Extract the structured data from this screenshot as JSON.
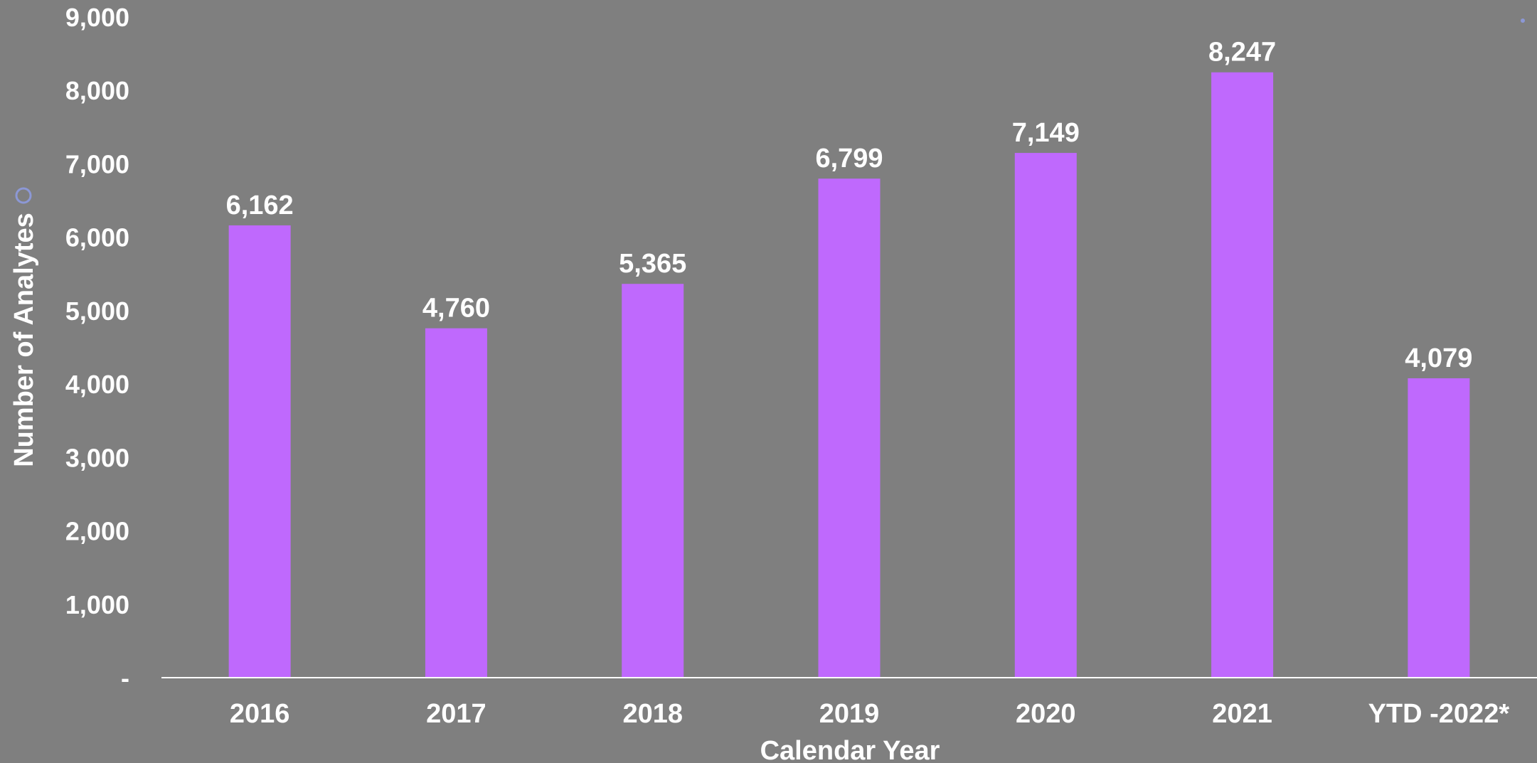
{
  "chart_data": {
    "type": "bar",
    "categories": [
      "2016",
      "2017",
      "2018",
      "2019",
      "2020",
      "2021",
      "YTD -2022*"
    ],
    "values": [
      6162,
      4760,
      5365,
      6799,
      7149,
      8247,
      4079
    ],
    "value_labels": [
      "6,162",
      "4,760",
      "5,365",
      "6,799",
      "7,149",
      "8,247",
      "4,079"
    ],
    "title": "",
    "xlabel": "Calendar Year",
    "ylabel": "Number of Analytes",
    "ylim": [
      0,
      9000
    ],
    "yticks": [
      0,
      1000,
      2000,
      3000,
      4000,
      5000,
      6000,
      7000,
      8000,
      9000
    ],
    "ytick_labels": [
      "-",
      "1,000",
      "2,000",
      "3,000",
      "4,000",
      "5,000",
      "6,000",
      "7,000",
      "8,000",
      "9,000"
    ],
    "grid": false,
    "legend": "none",
    "colors": {
      "background": "#7f7f7f",
      "bar": "#bf69fd",
      "axis_line": "#ffffff",
      "text": "#ffffff",
      "marker": "#8c98d6"
    }
  }
}
